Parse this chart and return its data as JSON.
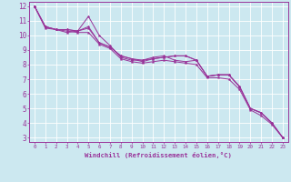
{
  "xlabel": "Windchill (Refroidissement éolien,°C)",
  "bg_color": "#cce8f0",
  "line_color": "#993399",
  "xlim": [
    -0.5,
    23.5
  ],
  "ylim": [
    2.7,
    12.3
  ],
  "xticks": [
    0,
    1,
    2,
    3,
    4,
    5,
    6,
    7,
    8,
    9,
    10,
    11,
    12,
    13,
    14,
    15,
    16,
    17,
    18,
    19,
    20,
    21,
    22,
    23
  ],
  "yticks": [
    3,
    4,
    5,
    6,
    7,
    8,
    9,
    10,
    11,
    12
  ],
  "series": [
    [
      12.0,
      10.6,
      10.4,
      10.2,
      10.3,
      11.3,
      10.0,
      9.3,
      8.5,
      8.3,
      8.3,
      8.5,
      8.6,
      8.3,
      8.2,
      8.3,
      7.2,
      7.3,
      7.3,
      6.5,
      5.0,
      4.7,
      4.0,
      3.0
    ],
    [
      12.0,
      10.6,
      10.4,
      10.4,
      10.3,
      10.6,
      9.5,
      9.2,
      8.6,
      8.4,
      8.3,
      8.4,
      8.5,
      8.6,
      8.6,
      8.3,
      7.2,
      7.3,
      7.3,
      6.5,
      5.0,
      4.7,
      4.0,
      3.0
    ],
    [
      12.0,
      10.6,
      10.4,
      10.4,
      10.3,
      10.5,
      9.5,
      9.2,
      8.6,
      8.4,
      8.2,
      8.4,
      8.5,
      8.6,
      8.6,
      8.3,
      7.2,
      7.3,
      7.3,
      6.5,
      5.0,
      4.7,
      4.0,
      3.0
    ],
    [
      12.0,
      10.5,
      10.4,
      10.3,
      10.2,
      10.2,
      9.4,
      9.1,
      8.4,
      8.2,
      8.1,
      8.2,
      8.3,
      8.2,
      8.1,
      8.0,
      7.1,
      7.1,
      7.0,
      6.3,
      4.9,
      4.5,
      3.9,
      3.0
    ]
  ]
}
